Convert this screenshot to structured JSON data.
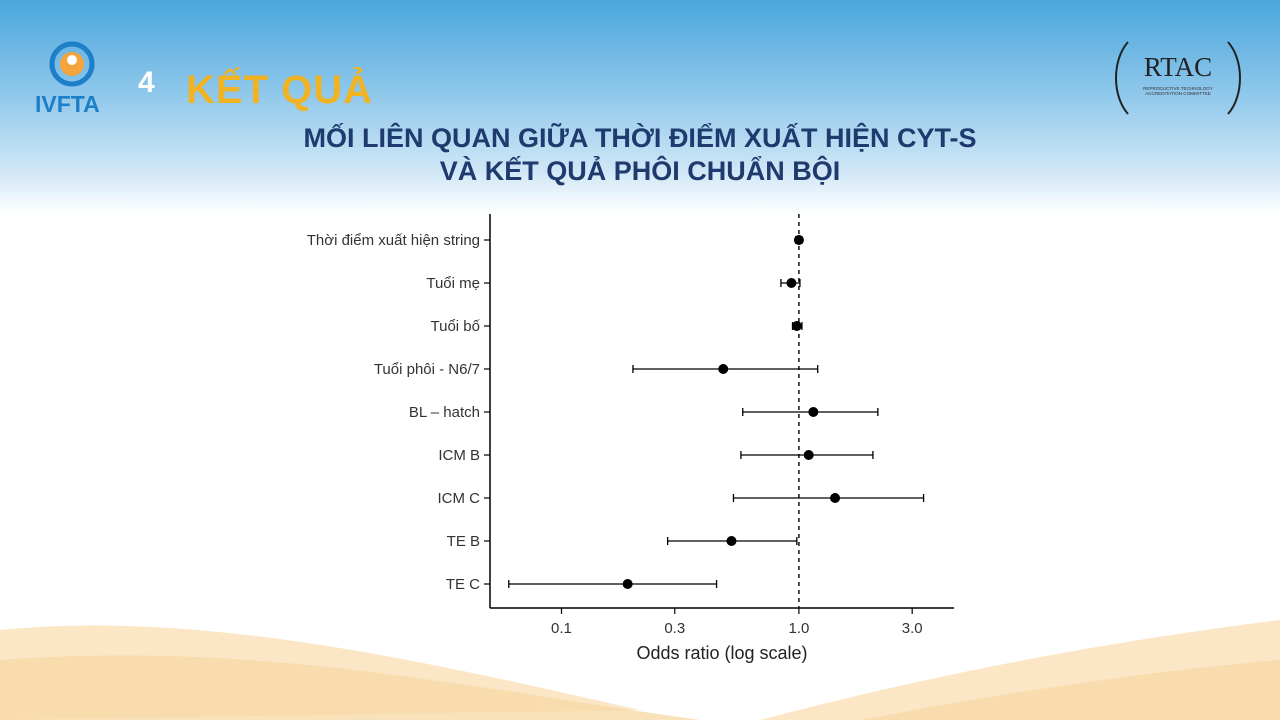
{
  "header": {
    "logo_text": "IVFTA",
    "step_number": "4",
    "section_title": "KẾT QUẢ",
    "rtac_name": "RTAC",
    "rtac_sub_line1": "REPRODUCTIVE TECHNOLOGY",
    "rtac_sub_line2": "ACCREDITATION COMMITTEE"
  },
  "slide": {
    "title_line1": "MỐI LIÊN QUAN GIỮA THỜI ĐIỂM XUẤT HIỆN CYT-S",
    "title_line2": "VÀ KẾT QUẢ PHÔI CHUẨN BỘI"
  },
  "colors": {
    "title_blue": "#1f3a6e",
    "accent_gold": "#f0b323",
    "logo_blue": "#1c7fc8"
  },
  "chart_data": {
    "type": "forest",
    "x_scale": "log",
    "xlabel": "Odds ratio (log scale)",
    "xlim": [
      0.05,
      4.5
    ],
    "x_ticks": [
      0.1,
      0.3,
      1.0,
      3.0
    ],
    "x_tick_labels": [
      "0.1",
      "0.3",
      "1.0",
      "3.0"
    ],
    "reference_line": 1.0,
    "grid": false,
    "rows": [
      {
        "label": "Thời điểm xuất hiện string",
        "or": 1.0,
        "lower": 0.97,
        "upper": 1.03
      },
      {
        "label": "Tuổi mẹ",
        "or": 0.93,
        "lower": 0.84,
        "upper": 1.01
      },
      {
        "label": "Tuổi bố",
        "or": 0.98,
        "lower": 0.94,
        "upper": 1.03
      },
      {
        "label": "Tuổi phôi - N6/7",
        "or": 0.48,
        "lower": 0.2,
        "upper": 1.2
      },
      {
        "label": "BL – hatch",
        "or": 1.15,
        "lower": 0.58,
        "upper": 2.15
      },
      {
        "label": "ICM B",
        "or": 1.1,
        "lower": 0.57,
        "upper": 2.05
      },
      {
        "label": "ICM C",
        "or": 1.42,
        "lower": 0.53,
        "upper": 3.35
      },
      {
        "label": "TE B",
        "or": 0.52,
        "lower": 0.28,
        "upper": 0.98
      },
      {
        "label": "TE C",
        "or": 0.19,
        "lower": 0.06,
        "upper": 0.45
      }
    ]
  }
}
